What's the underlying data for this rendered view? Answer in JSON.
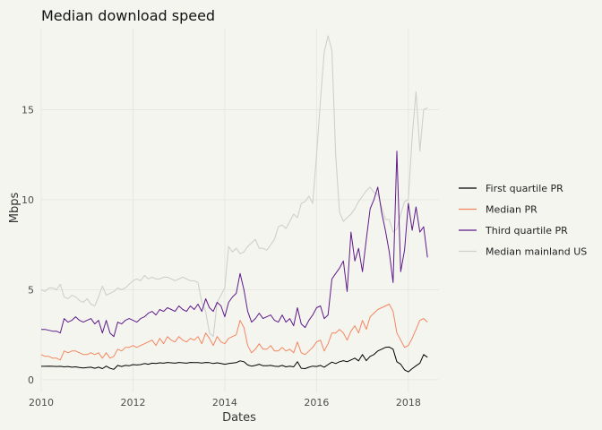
{
  "chart_data": {
    "type": "line",
    "title": "Median download speed",
    "xlabel": "Dates",
    "ylabel": "Mbps",
    "xlim": [
      "2010-01-01",
      "2018-09-01"
    ],
    "ylim": [
      -0.7,
      19.5
    ],
    "x_ticks": [
      {
        "value": "2010-01-01",
        "label": "2010"
      },
      {
        "value": "2012-01-01",
        "label": "2012"
      },
      {
        "value": "2014-01-01",
        "label": "2014"
      },
      {
        "value": "2016-01-01",
        "label": "2016"
      },
      {
        "value": "2018-01-01",
        "label": "2018"
      }
    ],
    "y_ticks": [
      0,
      5,
      10,
      15
    ],
    "grid": true,
    "legend_position": "right",
    "x": [
      "2010-01",
      "2010-02",
      "2010-03",
      "2010-04",
      "2010-05",
      "2010-06",
      "2010-07",
      "2010-08",
      "2010-09",
      "2010-10",
      "2010-11",
      "2010-12",
      "2011-01",
      "2011-02",
      "2011-03",
      "2011-04",
      "2011-05",
      "2011-06",
      "2011-07",
      "2011-08",
      "2011-09",
      "2011-10",
      "2011-11",
      "2011-12",
      "2012-01",
      "2012-02",
      "2012-03",
      "2012-04",
      "2012-05",
      "2012-06",
      "2012-07",
      "2012-08",
      "2012-09",
      "2012-10",
      "2012-11",
      "2012-12",
      "2013-01",
      "2013-02",
      "2013-03",
      "2013-04",
      "2013-05",
      "2013-06",
      "2013-07",
      "2013-08",
      "2013-09",
      "2013-10",
      "2013-11",
      "2013-12",
      "2014-01",
      "2014-02",
      "2014-03",
      "2014-04",
      "2014-05",
      "2014-06",
      "2014-07",
      "2014-08",
      "2014-09",
      "2014-10",
      "2014-11",
      "2014-12",
      "2015-01",
      "2015-02",
      "2015-03",
      "2015-04",
      "2015-05",
      "2015-06",
      "2015-07",
      "2015-08",
      "2015-09",
      "2015-10",
      "2015-11",
      "2015-12",
      "2016-01",
      "2016-02",
      "2016-03",
      "2016-04",
      "2016-05",
      "2016-06",
      "2016-07",
      "2016-08",
      "2016-09",
      "2016-10",
      "2016-11",
      "2016-12",
      "2017-01",
      "2017-02",
      "2017-03",
      "2017-04",
      "2017-05",
      "2017-06",
      "2017-07",
      "2017-08",
      "2017-09",
      "2017-10",
      "2017-11",
      "2017-12",
      "2018-01",
      "2018-02",
      "2018-03",
      "2018-04",
      "2018-05",
      "2018-06"
    ],
    "series": [
      {
        "name": "First quartile PR",
        "color": "#000000",
        "values": [
          0.75,
          0.75,
          0.76,
          0.75,
          0.74,
          0.75,
          0.72,
          0.74,
          0.7,
          0.72,
          0.68,
          0.66,
          0.68,
          0.7,
          0.64,
          0.7,
          0.62,
          0.76,
          0.64,
          0.58,
          0.8,
          0.74,
          0.8,
          0.78,
          0.84,
          0.82,
          0.84,
          0.9,
          0.86,
          0.92,
          0.9,
          0.94,
          0.92,
          0.96,
          0.94,
          0.92,
          0.96,
          0.94,
          0.92,
          0.96,
          0.95,
          0.95,
          0.93,
          0.96,
          0.95,
          0.9,
          0.94,
          0.9,
          0.86,
          0.9,
          0.93,
          0.95,
          1.05,
          1.0,
          0.82,
          0.76,
          0.8,
          0.86,
          0.78,
          0.78,
          0.8,
          0.76,
          0.74,
          0.8,
          0.72,
          0.76,
          0.72,
          1.0,
          0.64,
          0.62,
          0.7,
          0.76,
          0.74,
          0.8,
          0.7,
          0.84,
          0.98,
          0.9,
          1.0,
          1.06,
          1.0,
          1.1,
          1.2,
          1.05,
          1.4,
          1.06,
          1.3,
          1.4,
          1.6,
          1.7,
          1.8,
          1.82,
          1.7,
          1.0,
          0.86,
          0.55,
          0.44,
          0.62,
          0.78,
          0.92,
          1.4,
          1.25
        ]
      },
      {
        "name": "Median PR",
        "color": "#f4865f",
        "values": [
          1.4,
          1.3,
          1.3,
          1.2,
          1.2,
          1.1,
          1.6,
          1.5,
          1.6,
          1.6,
          1.5,
          1.4,
          1.4,
          1.5,
          1.4,
          1.5,
          1.2,
          1.5,
          1.2,
          1.3,
          1.7,
          1.6,
          1.8,
          1.8,
          1.9,
          1.8,
          1.9,
          2.0,
          2.1,
          2.2,
          1.9,
          2.3,
          2.0,
          2.4,
          2.2,
          2.1,
          2.4,
          2.2,
          2.1,
          2.3,
          2.2,
          2.4,
          2.0,
          2.6,
          2.3,
          1.9,
          2.4,
          2.1,
          2.0,
          2.3,
          2.4,
          2.5,
          3.3,
          2.9,
          1.9,
          1.5,
          1.7,
          2.0,
          1.7,
          1.7,
          1.9,
          1.6,
          1.6,
          1.8,
          1.6,
          1.7,
          1.5,
          2.1,
          1.5,
          1.4,
          1.6,
          1.8,
          2.1,
          2.2,
          1.6,
          2.0,
          2.6,
          2.6,
          2.8,
          2.6,
          2.2,
          2.7,
          3.0,
          2.6,
          3.3,
          2.8,
          3.5,
          3.7,
          3.9,
          4.0,
          4.1,
          4.2,
          3.8,
          2.6,
          2.2,
          1.8,
          1.9,
          2.3,
          2.8,
          3.3,
          3.4,
          3.2
        ]
      },
      {
        "name": "Third quartile PR",
        "color": "#5e1a8a",
        "values": [
          2.8,
          2.8,
          2.75,
          2.7,
          2.7,
          2.6,
          3.4,
          3.2,
          3.3,
          3.5,
          3.3,
          3.2,
          3.3,
          3.4,
          3.1,
          3.3,
          2.6,
          3.3,
          2.6,
          2.4,
          3.2,
          3.1,
          3.3,
          3.4,
          3.3,
          3.2,
          3.4,
          3.5,
          3.7,
          3.8,
          3.6,
          3.9,
          3.8,
          4.0,
          3.9,
          3.8,
          4.1,
          3.9,
          3.8,
          4.1,
          3.9,
          4.2,
          3.8,
          4.5,
          4.0,
          3.8,
          4.3,
          4.1,
          3.5,
          4.3,
          4.6,
          4.8,
          5.9,
          5.0,
          3.8,
          3.2,
          3.4,
          3.7,
          3.4,
          3.5,
          3.6,
          3.3,
          3.2,
          3.6,
          3.2,
          3.4,
          3.0,
          4.0,
          3.1,
          2.9,
          3.3,
          3.6,
          4.0,
          4.1,
          3.4,
          3.6,
          5.6,
          5.9,
          6.2,
          6.6,
          4.9,
          8.2,
          6.6,
          7.3,
          6.0,
          7.8,
          9.5,
          10.0,
          10.7,
          9.3,
          8.3,
          7.1,
          5.4,
          12.7,
          6.0,
          7.2,
          9.8,
          8.3,
          9.6,
          8.2,
          8.5,
          6.8
        ]
      },
      {
        "name": "Median mainland US",
        "color": "#cfcfcb",
        "values": [
          5.0,
          4.9,
          5.1,
          5.1,
          5.0,
          5.3,
          4.6,
          4.5,
          4.7,
          4.6,
          4.4,
          4.3,
          4.5,
          4.2,
          4.1,
          4.6,
          5.2,
          4.7,
          4.8,
          4.9,
          5.1,
          5.0,
          5.1,
          5.3,
          5.5,
          5.6,
          5.5,
          5.8,
          5.6,
          5.7,
          5.6,
          5.6,
          5.7,
          5.7,
          5.6,
          5.5,
          5.6,
          5.7,
          5.6,
          5.5,
          5.5,
          5.4,
          4.3,
          3.8,
          2.6,
          2.4,
          4.3,
          4.7,
          5.1,
          7.4,
          7.1,
          7.3,
          7.0,
          7.1,
          7.4,
          7.6,
          7.8,
          7.3,
          7.3,
          7.2,
          7.5,
          7.8,
          8.5,
          8.6,
          8.4,
          8.8,
          9.2,
          9.0,
          9.8,
          9.9,
          10.2,
          9.8,
          12.5,
          15.5,
          18.2,
          19.1,
          18.3,
          12.5,
          9.3,
          8.8,
          9.0,
          9.2,
          9.5,
          9.9,
          10.2,
          10.5,
          10.7,
          10.4,
          10.3,
          9.6,
          8.9,
          8.9,
          8.2,
          8.4,
          9.2,
          9.9,
          10.0,
          13.5,
          16.0,
          12.7,
          15.0,
          15.1
        ]
      }
    ]
  }
}
